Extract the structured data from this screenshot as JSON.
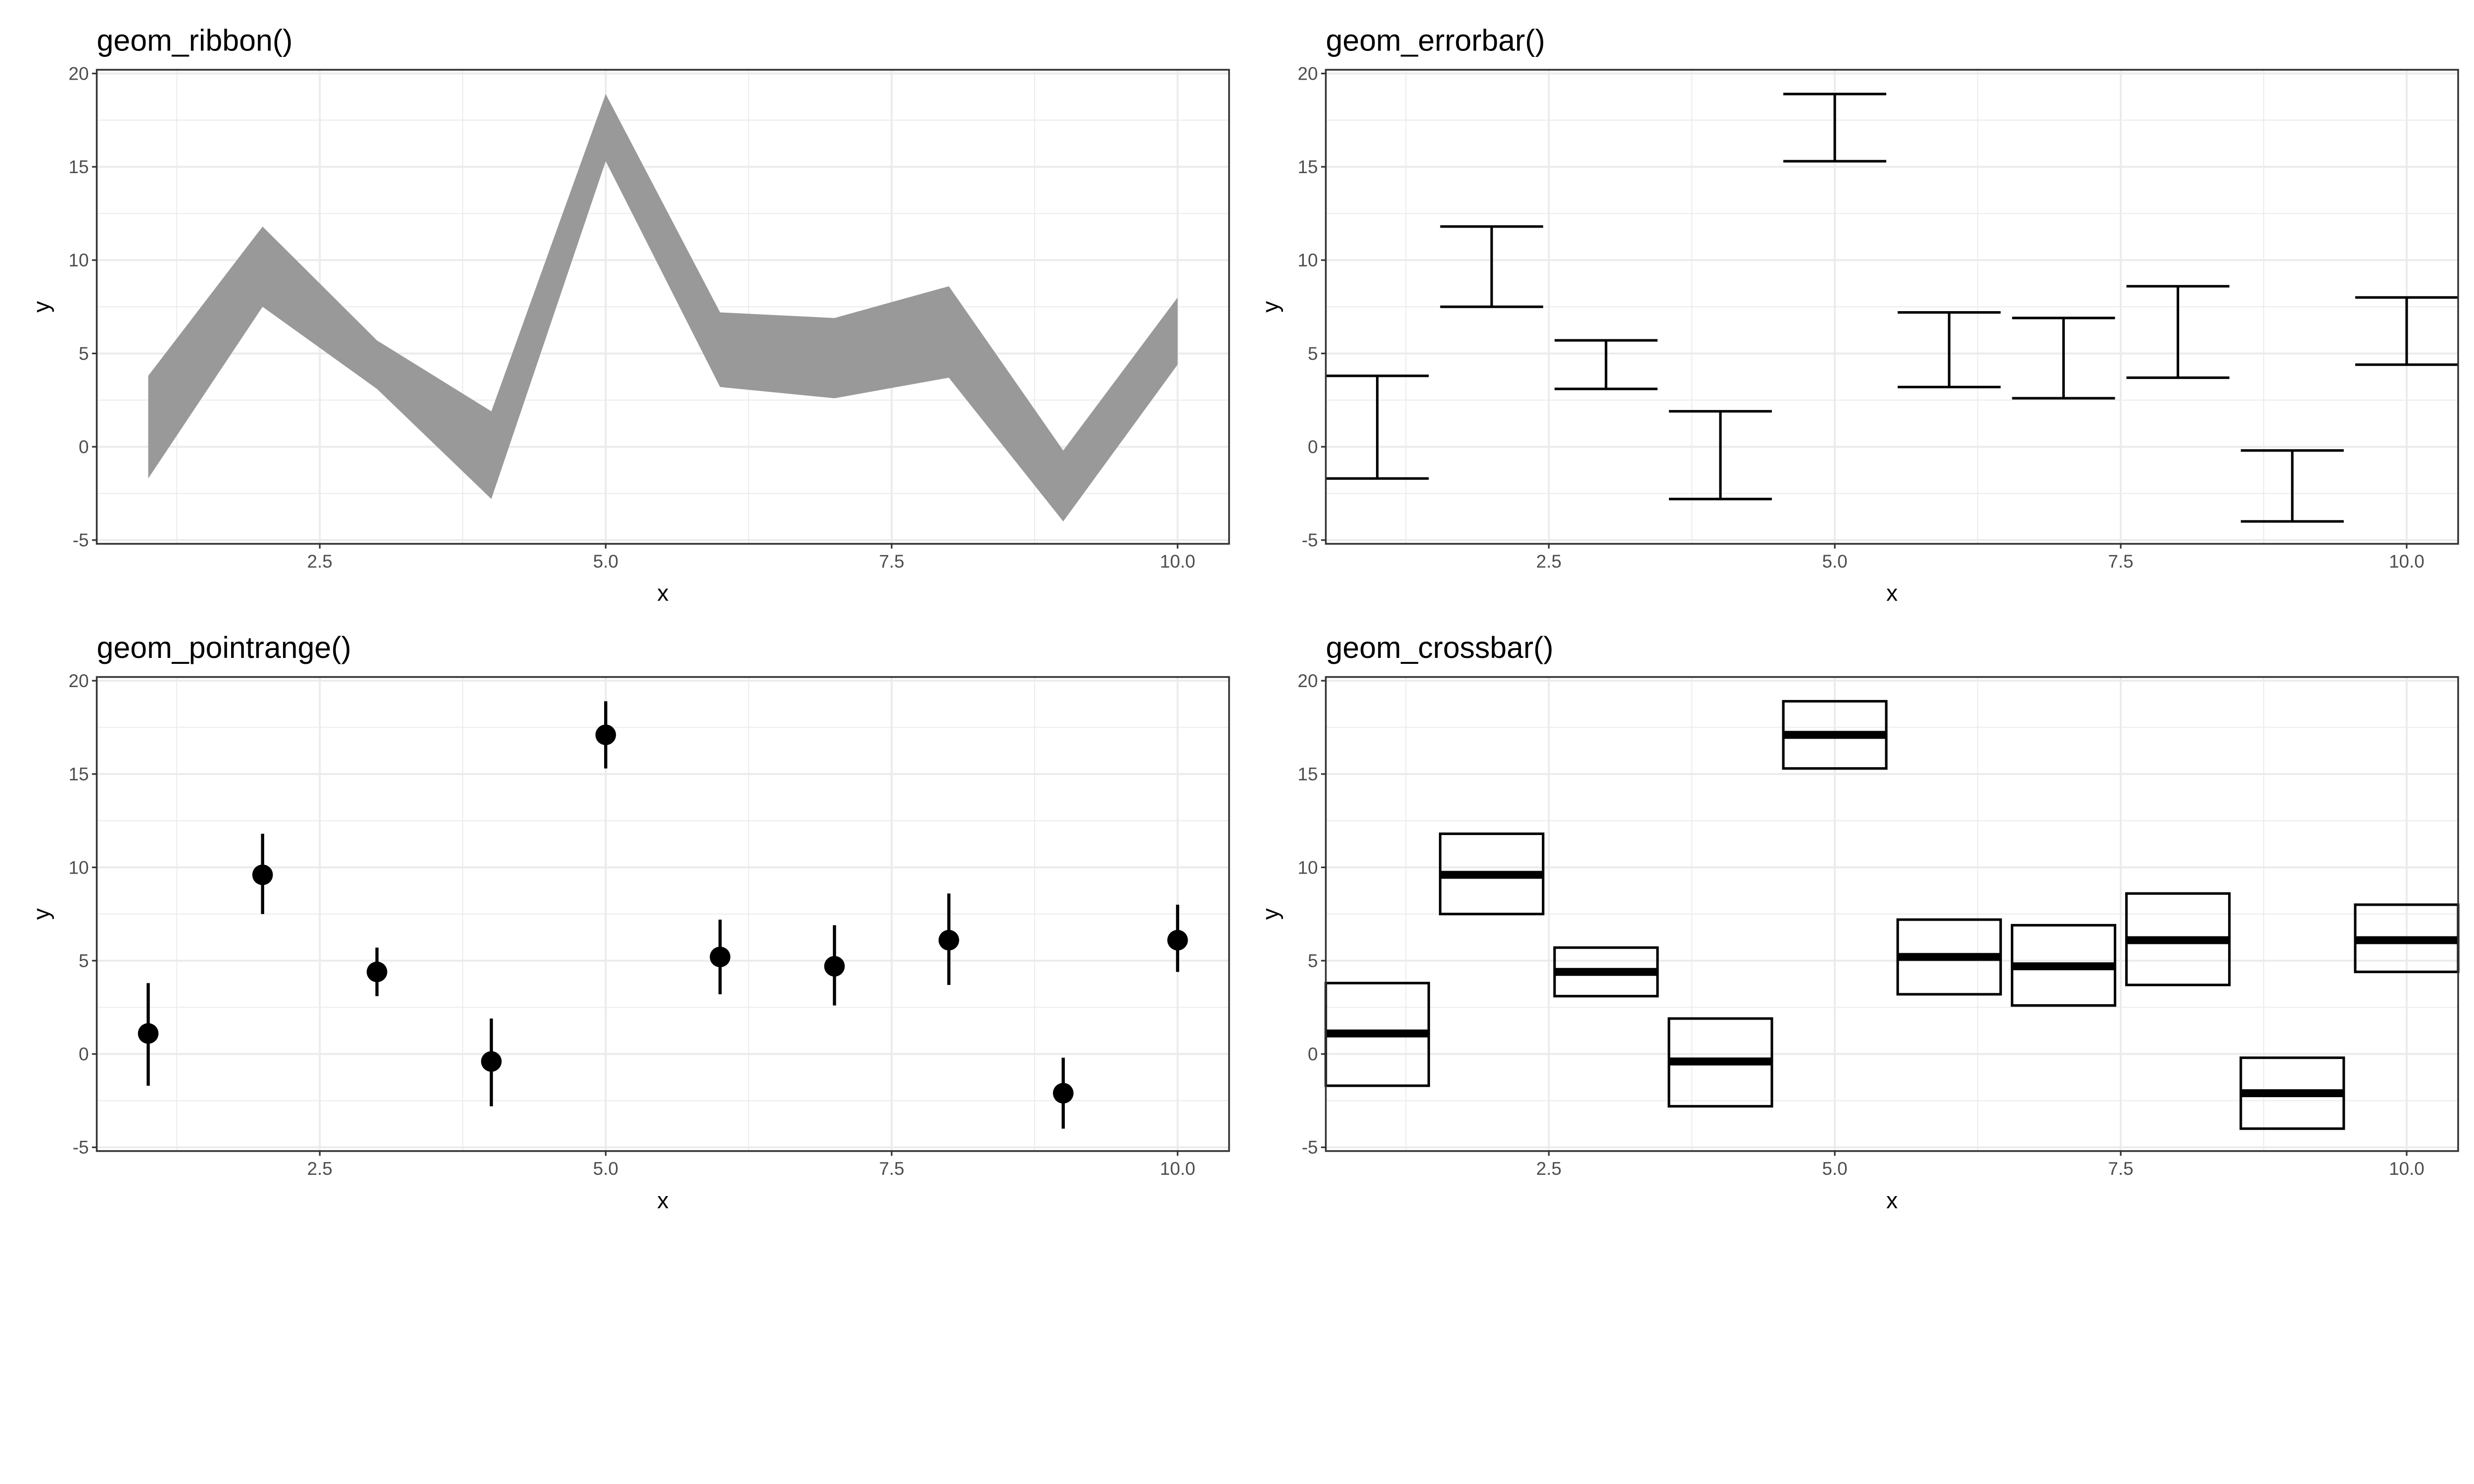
{
  "chart_data": [
    {
      "type": "ribbon",
      "title": "geom_ribbon()",
      "xlabel": "x",
      "ylabel": "y",
      "xlim": [
        0.55,
        10.45
      ],
      "ylim": [
        -5.2,
        20.2
      ],
      "xticks": [
        "2.5",
        "5.0",
        "7.5",
        "10.0"
      ],
      "yticks": [
        "-5",
        "0",
        "5",
        "10",
        "15",
        "20"
      ],
      "fill": "#999999"
    },
    {
      "type": "errorbar",
      "title": "geom_errorbar()",
      "xlabel": "x",
      "ylabel": "y",
      "xlim": [
        0.55,
        10.45
      ],
      "ylim": [
        -5.2,
        20.2
      ],
      "xticks": [
        "2.5",
        "5.0",
        "7.5",
        "10.0"
      ],
      "yticks": [
        "-5",
        "0",
        "5",
        "10",
        "15",
        "20"
      ]
    },
    {
      "type": "pointrange",
      "title": "geom_pointrange()",
      "xlabel": "x",
      "ylabel": "y",
      "xlim": [
        0.55,
        10.45
      ],
      "ylim": [
        -5.2,
        20.2
      ],
      "xticks": [
        "2.5",
        "5.0",
        "7.5",
        "10.0"
      ],
      "yticks": [
        "-5",
        "0",
        "5",
        "10",
        "15",
        "20"
      ]
    },
    {
      "type": "crossbar",
      "title": "geom_crossbar()",
      "xlabel": "x",
      "ylabel": "y",
      "xlim": [
        0.55,
        10.45
      ],
      "ylim": [
        -5.2,
        20.2
      ],
      "xticks": [
        "2.5",
        "5.0",
        "7.5",
        "10.0"
      ],
      "yticks": [
        "-5",
        "0",
        "5",
        "10",
        "15",
        "20"
      ]
    }
  ],
  "series": {
    "x": [
      1,
      2,
      3,
      4,
      5,
      6,
      7,
      8,
      9,
      10
    ],
    "y": [
      1.1,
      9.6,
      4.4,
      -0.4,
      17.1,
      5.2,
      4.7,
      6.1,
      -2.1,
      6.1
    ],
    "ymin": [
      -1.7,
      7.5,
      3.1,
      -2.8,
      15.3,
      3.2,
      2.6,
      3.7,
      -4.0,
      4.4
    ],
    "ymax": [
      3.8,
      11.8,
      5.7,
      1.9,
      18.9,
      7.2,
      6.9,
      8.6,
      -0.2,
      8.0
    ]
  }
}
